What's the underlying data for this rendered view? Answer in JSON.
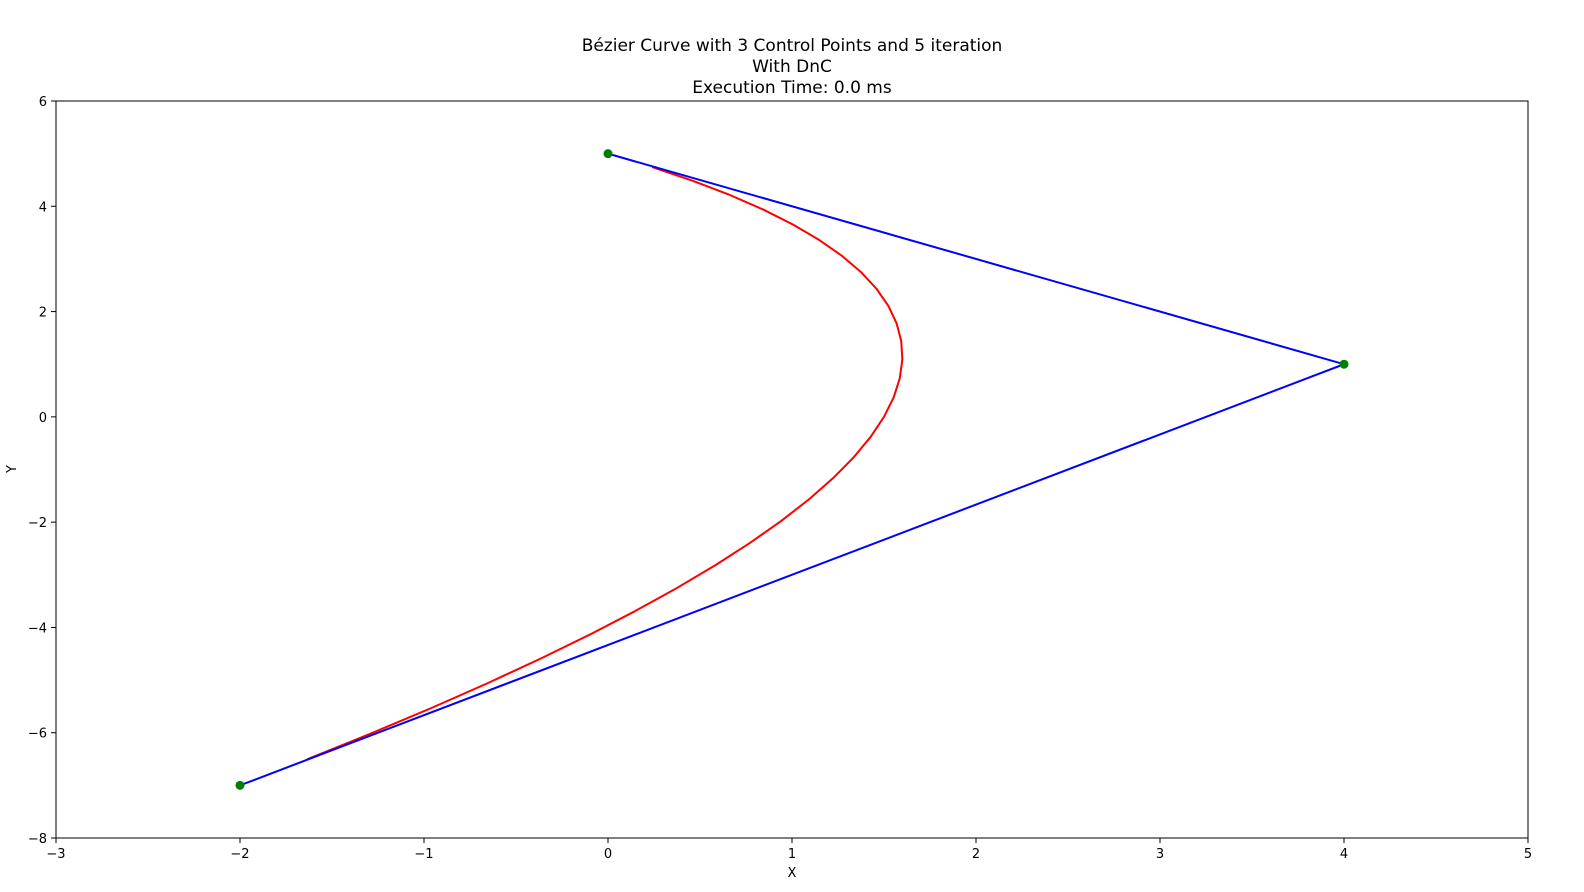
{
  "chart_data": {
    "type": "line",
    "title_lines": [
      "Bézier Curve with 3 Control Points and 5 iteration",
      "With DnC",
      "Execution Time: 0.0 ms"
    ],
    "xlabel": "X",
    "ylabel": "Y",
    "xlim": [
      -3,
      5
    ],
    "ylim": [
      -8,
      6
    ],
    "x_ticks": [
      -3,
      -2,
      -1,
      0,
      1,
      2,
      3,
      4,
      5
    ],
    "y_ticks": [
      -8,
      -6,
      -4,
      -2,
      0,
      2,
      4,
      6
    ],
    "x_tick_labels": [
      "−3",
      "−2",
      "−1",
      "0",
      "1",
      "2",
      "3",
      "4",
      "5"
    ],
    "y_tick_labels": [
      "−8",
      "−6",
      "−4",
      "−2",
      "0",
      "2",
      "4",
      "6"
    ],
    "grid": false,
    "control_points": {
      "x": [
        0,
        4,
        -2
      ],
      "y": [
        5,
        1,
        -7
      ],
      "line_color": "#0000ff",
      "marker_color": "#008000"
    },
    "curve": {
      "type": "quadratic-bezier",
      "iterations": 5,
      "color": "#ff0000"
    }
  }
}
